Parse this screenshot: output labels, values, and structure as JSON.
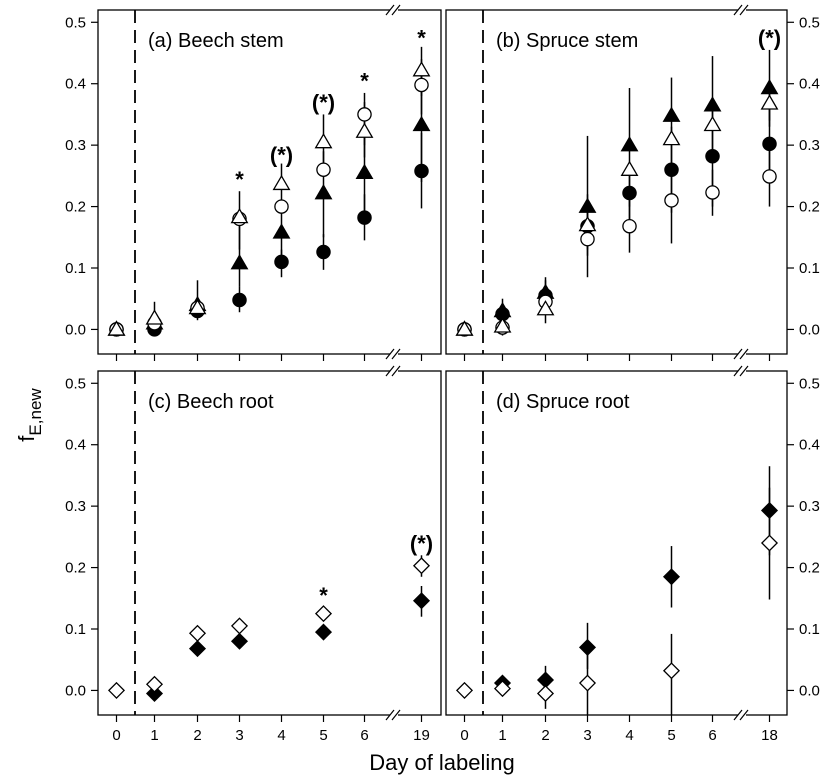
{
  "figure": {
    "xlabel": "Day of labeling",
    "ylabel": "f",
    "ylabel_sub": "E,new"
  },
  "chart_data": [
    {
      "type": "scatter",
      "title": "(a) Beech stem",
      "x_ticks": [
        "0",
        "1",
        "2",
        "3",
        "4",
        "5",
        "6",
        "19"
      ],
      "y_ticks": [
        "0.0",
        "0.1",
        "0.2",
        "0.3",
        "0.4",
        "0.5"
      ],
      "ylim": [
        -0.04,
        0.52
      ],
      "axis_break_x": true,
      "series": [
        {
          "marker": "filled-circle",
          "points": [
            {
              "x": "0",
              "y": 0.0
            },
            {
              "x": "1",
              "y": 0.0
            },
            {
              "x": "2",
              "y": 0.03
            },
            {
              "x": "3",
              "y": 0.048,
              "lo": 0.028,
              "hi": 0.07
            },
            {
              "x": "4",
              "y": 0.11,
              "lo": 0.085,
              "hi": 0.13
            },
            {
              "x": "5",
              "y": 0.126,
              "lo": 0.097,
              "hi": 0.155
            },
            {
              "x": "6",
              "y": 0.182,
              "lo": 0.145,
              "hi": 0.22
            },
            {
              "x": "19",
              "y": 0.258,
              "lo": 0.197,
              "hi": 0.32
            }
          ]
        },
        {
          "marker": "filled-triangle",
          "points": [
            {
              "x": "0",
              "y": 0.0
            },
            {
              "x": "1",
              "y": 0.01
            },
            {
              "x": "2",
              "y": 0.04,
              "lo": 0.015,
              "hi": 0.08
            },
            {
              "x": "3",
              "y": 0.108,
              "lo": 0.07,
              "hi": 0.18
            },
            {
              "x": "4",
              "y": 0.158,
              "lo": 0.12,
              "hi": 0.2
            },
            {
              "x": "5",
              "y": 0.222,
              "lo": 0.15,
              "hi": 0.29
            },
            {
              "x": "6",
              "y": 0.255,
              "lo": 0.18,
              "hi": 0.33
            },
            {
              "x": "19",
              "y": 0.333,
              "lo": 0.24,
              "hi": 0.42
            }
          ]
        },
        {
          "marker": "open-circle",
          "points": [
            {
              "x": "0",
              "y": 0.0
            },
            {
              "x": "1",
              "y": 0.01
            },
            {
              "x": "2",
              "y": 0.035
            },
            {
              "x": "3",
              "y": 0.18
            },
            {
              "x": "4",
              "y": 0.2
            },
            {
              "x": "5",
              "y": 0.26
            },
            {
              "x": "6",
              "y": 0.35,
              "lo": 0.3,
              "hi": 0.385
            },
            {
              "x": "19",
              "y": 0.398,
              "lo": 0.35,
              "hi": 0.44
            }
          ]
        },
        {
          "marker": "open-triangle",
          "points": [
            {
              "x": "0",
              "y": 0.0
            },
            {
              "x": "1",
              "y": 0.018,
              "lo": 0.0,
              "hi": 0.045
            },
            {
              "x": "2",
              "y": 0.035
            },
            {
              "x": "3",
              "y": 0.183,
              "lo": 0.13,
              "hi": 0.225
            },
            {
              "x": "4",
              "y": 0.237,
              "lo": 0.19,
              "hi": 0.27
            },
            {
              "x": "5",
              "y": 0.305,
              "lo": 0.26,
              "hi": 0.35
            },
            {
              "x": "6",
              "y": 0.322,
              "lo": 0.28,
              "hi": 0.37
            },
            {
              "x": "19",
              "y": 0.422,
              "lo": 0.38,
              "hi": 0.46
            }
          ]
        }
      ],
      "significance": [
        {
          "x": "3",
          "text": "*",
          "y": 0.245
        },
        {
          "x": "4",
          "text": "(*)",
          "y": 0.285
        },
        {
          "x": "5",
          "text": "(*)",
          "y": 0.37
        },
        {
          "x": "6",
          "text": "*",
          "y": 0.405
        },
        {
          "x": "19",
          "text": "*",
          "y": 0.475
        }
      ]
    },
    {
      "type": "scatter",
      "title": "(b) Spruce stem",
      "x_ticks": [
        "0",
        "1",
        "2",
        "3",
        "4",
        "5",
        "6",
        "18"
      ],
      "y_ticks": [
        "0.0",
        "0.1",
        "0.2",
        "0.3",
        "0.4",
        "0.5"
      ],
      "ylim": [
        -0.04,
        0.52
      ],
      "axis_break_x": true,
      "series": [
        {
          "marker": "filled-circle",
          "points": [
            {
              "x": "0",
              "y": 0.0
            },
            {
              "x": "1",
              "y": 0.025,
              "lo": 0.0,
              "hi": 0.05
            },
            {
              "x": "2",
              "y": 0.055,
              "lo": 0.035,
              "hi": 0.08
            },
            {
              "x": "3",
              "y": 0.168,
              "lo": 0.12,
              "hi": 0.22
            },
            {
              "x": "4",
              "y": 0.222,
              "lo": 0.165,
              "hi": 0.27
            },
            {
              "x": "5",
              "y": 0.26,
              "lo": 0.19,
              "hi": 0.33
            },
            {
              "x": "6",
              "y": 0.282,
              "lo": 0.2,
              "hi": 0.36
            },
            {
              "x": "18",
              "y": 0.302,
              "lo": 0.25,
              "hi": 0.36
            }
          ]
        },
        {
          "marker": "filled-triangle",
          "points": [
            {
              "x": "0",
              "y": 0.0
            },
            {
              "x": "1",
              "y": 0.03
            },
            {
              "x": "2",
              "y": 0.06,
              "lo": 0.035,
              "hi": 0.085
            },
            {
              "x": "3",
              "y": 0.2,
              "lo": 0.13,
              "hi": 0.315
            },
            {
              "x": "4",
              "y": 0.3,
              "lo": 0.2,
              "hi": 0.393
            },
            {
              "x": "5",
              "y": 0.348,
              "lo": 0.28,
              "hi": 0.41
            },
            {
              "x": "6",
              "y": 0.365,
              "lo": 0.29,
              "hi": 0.445
            },
            {
              "x": "18",
              "y": 0.393,
              "lo": 0.34,
              "hi": 0.455
            }
          ]
        },
        {
          "marker": "open-circle",
          "points": [
            {
              "x": "0",
              "y": 0.0
            },
            {
              "x": "1",
              "y": 0.003
            },
            {
              "x": "2",
              "y": 0.045,
              "lo": 0.025,
              "hi": 0.07
            },
            {
              "x": "3",
              "y": 0.147,
              "lo": 0.085,
              "hi": 0.2
            },
            {
              "x": "4",
              "y": 0.168,
              "lo": 0.125,
              "hi": 0.21
            },
            {
              "x": "5",
              "y": 0.21,
              "lo": 0.14,
              "hi": 0.28
            },
            {
              "x": "6",
              "y": 0.223,
              "lo": 0.185,
              "hi": 0.26
            },
            {
              "x": "18",
              "y": 0.249,
              "lo": 0.2,
              "hi": 0.3
            }
          ]
        },
        {
          "marker": "open-triangle",
          "points": [
            {
              "x": "0",
              "y": 0.0
            },
            {
              "x": "1",
              "y": 0.005,
              "lo": -0.01,
              "hi": 0.02
            },
            {
              "x": "2",
              "y": 0.033,
              "lo": 0.01,
              "hi": 0.06
            },
            {
              "x": "3",
              "y": 0.17
            },
            {
              "x": "4",
              "y": 0.26
            },
            {
              "x": "5",
              "y": 0.31
            },
            {
              "x": "6",
              "y": 0.333
            },
            {
              "x": "18",
              "y": 0.368,
              "lo": 0.33,
              "hi": 0.4
            }
          ]
        }
      ],
      "significance": [
        {
          "x": "18",
          "text": "(*)",
          "y": 0.475
        }
      ]
    },
    {
      "type": "scatter",
      "title": "(c) Beech root",
      "x_ticks": [
        "0",
        "1",
        "2",
        "3",
        "4",
        "5",
        "6",
        "19"
      ],
      "y_ticks": [
        "0.0",
        "0.1",
        "0.2",
        "0.3",
        "0.4",
        "0.5"
      ],
      "ylim": [
        -0.04,
        0.52
      ],
      "axis_break_x": true,
      "series": [
        {
          "marker": "filled-diamond",
          "points": [
            {
              "x": "1",
              "y": -0.005
            },
            {
              "x": "2",
              "y": 0.068
            },
            {
              "x": "3",
              "y": 0.08
            },
            {
              "x": "5",
              "y": 0.095
            },
            {
              "x": "19",
              "y": 0.146,
              "lo": 0.12,
              "hi": 0.17
            }
          ]
        },
        {
          "marker": "open-diamond",
          "points": [
            {
              "x": "0",
              "y": 0.0
            },
            {
              "x": "1",
              "y": 0.01
            },
            {
              "x": "2",
              "y": 0.093
            },
            {
              "x": "3",
              "y": 0.105
            },
            {
              "x": "5",
              "y": 0.125
            },
            {
              "x": "19",
              "y": 0.203,
              "lo": 0.185,
              "hi": 0.22
            }
          ]
        }
      ],
      "significance": [
        {
          "x": "5",
          "text": "*",
          "y": 0.155
        },
        {
          "x": "19",
          "text": "(*)",
          "y": 0.24
        }
      ]
    },
    {
      "type": "scatter",
      "title": "(d) Spruce root",
      "x_ticks": [
        "0",
        "1",
        "2",
        "3",
        "4",
        "5",
        "6",
        "18"
      ],
      "y_ticks": [
        "0.0",
        "0.1",
        "0.2",
        "0.3",
        "0.4",
        "0.5"
      ],
      "ylim": [
        -0.04,
        0.52
      ],
      "axis_break_x": true,
      "series": [
        {
          "marker": "filled-diamond",
          "points": [
            {
              "x": "1",
              "y": 0.012
            },
            {
              "x": "2",
              "y": 0.017,
              "lo": -0.005,
              "hi": 0.04
            },
            {
              "x": "3",
              "y": 0.07,
              "lo": 0.035,
              "hi": 0.11
            },
            {
              "x": "5",
              "y": 0.185,
              "lo": 0.135,
              "hi": 0.235
            },
            {
              "x": "18",
              "y": 0.293,
              "lo": 0.22,
              "hi": 0.365
            }
          ]
        },
        {
          "marker": "open-diamond",
          "points": [
            {
              "x": "0",
              "y": 0.0
            },
            {
              "x": "1",
              "y": 0.003
            },
            {
              "x": "2",
              "y": -0.005,
              "lo": -0.03,
              "hi": 0.02
            },
            {
              "x": "3",
              "y": 0.012,
              "lo": -0.04,
              "hi": 0.06
            },
            {
              "x": "5",
              "y": 0.032,
              "lo": -0.04,
              "hi": 0.092
            },
            {
              "x": "18",
              "y": 0.24,
              "lo": 0.148,
              "hi": 0.33
            }
          ]
        }
      ]
    }
  ]
}
